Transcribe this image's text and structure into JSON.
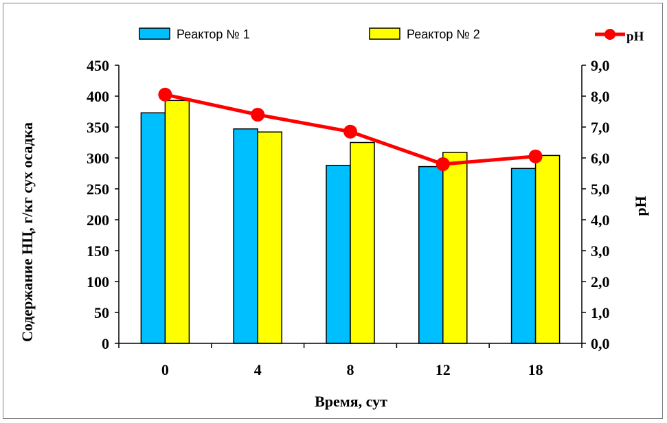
{
  "chart_data": {
    "type": "bar",
    "categories": [
      "0",
      "4",
      "8",
      "12",
      "18"
    ],
    "series": [
      {
        "name": "Реактор № 1",
        "type": "bar",
        "axis": "left",
        "color": "#00bfff",
        "values": [
          373,
          347,
          288,
          286,
          283
        ]
      },
      {
        "name": "Реактор № 2",
        "type": "bar",
        "axis": "left",
        "color": "#ffff00",
        "values": [
          393,
          342,
          325,
          309,
          304
        ]
      },
      {
        "name": "pH",
        "type": "line",
        "axis": "right",
        "color": "#ff0000",
        "values": [
          8.05,
          7.4,
          6.85,
          5.8,
          6.05
        ]
      }
    ],
    "xlabel": "Время, сут",
    "ylabel": "Содержание НЦ, г/кг сух осадка",
    "y2label": "pH",
    "ylim": [
      0,
      450
    ],
    "y2lim": [
      0,
      9
    ],
    "yticks": [
      "0",
      "50",
      "100",
      "150",
      "200",
      "250",
      "300",
      "350",
      "400",
      "450"
    ],
    "y2ticks": [
      "0,0",
      "1,0",
      "2,0",
      "3,0",
      "4,0",
      "5,0",
      "6,0",
      "7,0",
      "8,0",
      "9,0"
    ],
    "grid": false,
    "legend_position": "top"
  }
}
